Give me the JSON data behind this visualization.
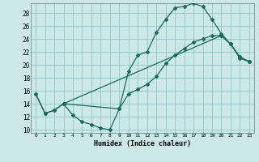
{
  "xlabel": "Humidex (Indice chaleur)",
  "bg_color": "#cce8e8",
  "grid_color": "#99cccc",
  "line_color": "#1a6b5a",
  "xlim": [
    -0.5,
    23.5
  ],
  "ylim": [
    9.5,
    29.5
  ],
  "xticks": [
    0,
    1,
    2,
    3,
    4,
    5,
    6,
    7,
    8,
    9,
    10,
    11,
    12,
    13,
    14,
    15,
    16,
    17,
    18,
    19,
    20,
    21,
    22,
    23
  ],
  "yticks": [
    10,
    12,
    14,
    16,
    18,
    20,
    22,
    24,
    26,
    28
  ],
  "curve1_x": [
    0,
    1,
    2,
    3,
    4,
    5,
    6,
    7,
    8,
    9,
    10,
    11,
    12,
    13,
    14,
    15,
    16,
    17,
    18,
    19,
    20,
    21,
    22,
    23
  ],
  "curve1_y": [
    15.5,
    12.5,
    13.0,
    14.0,
    12.2,
    11.2,
    10.8,
    10.2,
    10.0,
    13.2,
    19.0,
    21.5,
    22.0,
    25.0,
    27.0,
    28.8,
    29.0,
    29.5,
    29.0,
    27.0,
    24.8,
    23.2,
    21.0,
    20.5
  ],
  "curve2_x": [
    3,
    9,
    10,
    11,
    12,
    13,
    14,
    15,
    16,
    17,
    18,
    19,
    20,
    21,
    22,
    23
  ],
  "curve2_y": [
    14.0,
    13.2,
    15.5,
    16.2,
    17.0,
    18.2,
    20.2,
    21.5,
    22.5,
    23.5,
    24.0,
    24.5,
    24.5,
    23.2,
    21.2,
    20.5
  ],
  "curve3_x": [
    0,
    1,
    2,
    3,
    20,
    21,
    22,
    23
  ],
  "curve3_y": [
    15.5,
    12.5,
    13.0,
    14.0,
    24.5,
    23.2,
    21.2,
    20.5
  ]
}
